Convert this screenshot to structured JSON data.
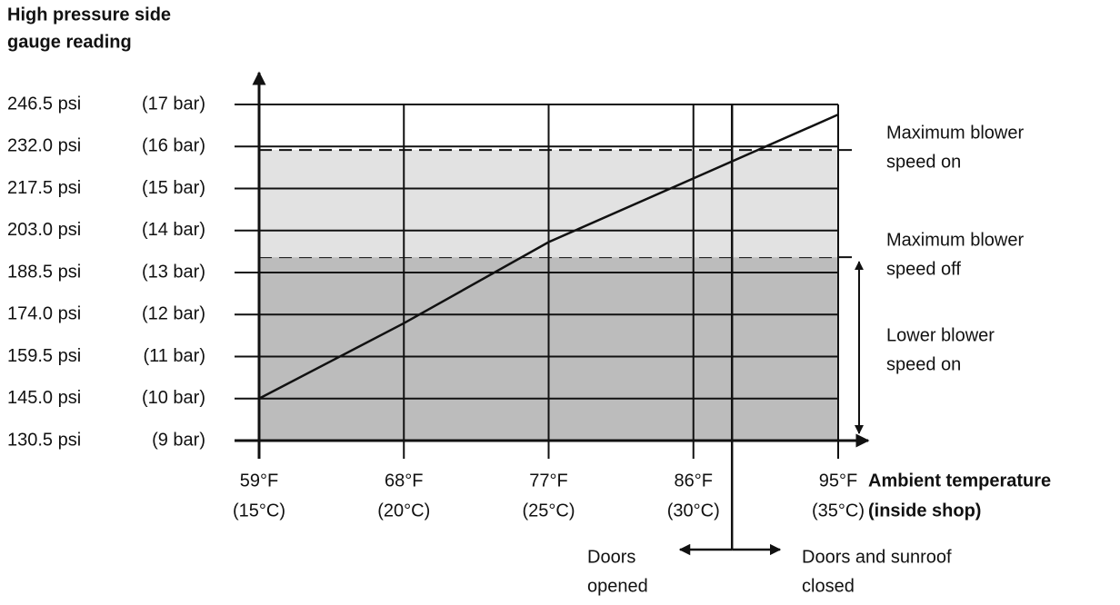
{
  "chart_data": {
    "type": "line",
    "y_axis_title": [
      "High pressure side",
      "gauge reading"
    ],
    "x_axis_title": [
      "Ambient temperature",
      "(inside shop)"
    ],
    "xlim": [
      59,
      95
    ],
    "ylim": [
      130.5,
      246.5
    ],
    "xticks": [
      {
        "value": 59,
        "label": "59°F"
      },
      {
        "value": 68,
        "label": "68°F"
      },
      {
        "value": 77,
        "label": "77°F"
      },
      {
        "value": 86,
        "label": "86°F"
      },
      {
        "value": 95,
        "label": "95°F"
      }
    ],
    "xtick_celsius_labels": [
      "(15°C)",
      "(20°C)",
      "(25°C)",
      "(30°C)",
      "(35°C)"
    ],
    "yticks": [
      {
        "value": 130.5,
        "label": "130.5 psi"
      },
      {
        "value": 145.0,
        "label": "145.0 psi"
      },
      {
        "value": 159.5,
        "label": "159.5 psi"
      },
      {
        "value": 174.0,
        "label": "174.0 psi"
      },
      {
        "value": 188.5,
        "label": "188.5 psi"
      },
      {
        "value": 203.0,
        "label": "203.0 psi"
      },
      {
        "value": 217.5,
        "label": "217.5 psi"
      },
      {
        "value": 232.0,
        "label": "232.0 psi"
      },
      {
        "value": 246.5,
        "label": "246.5 psi"
      }
    ],
    "ytick_bar_labels": [
      "(9 bar)",
      "(10 bar)",
      "(11 bar)",
      "(12 bar)",
      "(13 bar)",
      "(14 bar)",
      "(15 bar)",
      "(16 bar)",
      "(17 bar)"
    ],
    "grid": true,
    "x": [
      59,
      68,
      77,
      86,
      95
    ],
    "series": [
      {
        "color": "#111111",
        "values": [
          145,
          171,
          199,
          221,
          243
        ]
      }
    ],
    "bands": [
      {
        "from": 130.5,
        "to": 193.8,
        "color": "#bcbcbc"
      },
      {
        "from": 193.8,
        "to": 230.8,
        "color": "#e2e2e2"
      }
    ],
    "annotations": [
      [
        "Maximum blower",
        "speed on"
      ],
      [
        "Maximum blower",
        "speed off"
      ],
      [
        "Lower blower",
        "speed on"
      ]
    ],
    "door_line_x": 88.4,
    "door_labels": [
      [
        "Doors",
        "opened"
      ],
      [
        "Doors and sunroof",
        "closed"
      ]
    ]
  }
}
